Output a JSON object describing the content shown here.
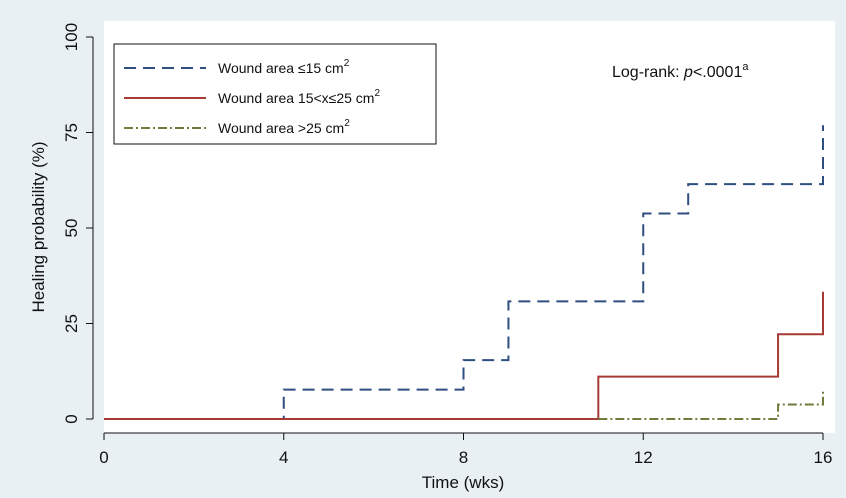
{
  "chart_data": {
    "type": "line",
    "xlabel": "Time (wks)",
    "ylabel": "Healing probability (%)",
    "xlim": [
      0,
      16
    ],
    "ylim": [
      0,
      100
    ],
    "xticks": [
      0,
      4,
      8,
      12,
      16
    ],
    "yticks": [
      0,
      25,
      50,
      75,
      100
    ],
    "grid": false,
    "legend_position": "top-left",
    "annotation": {
      "prefix": "Log-rank: ",
      "italic": "p",
      "rest": "<.0001",
      "sup": "a"
    },
    "series": [
      {
        "name": "Wound area ≤15 cm",
        "sup": "2",
        "color": "#2f4f80",
        "dash": "dashed",
        "x": [
          0,
          4,
          8,
          9,
          12,
          13,
          16
        ],
        "y": [
          0,
          7.7,
          15.4,
          30.8,
          53.8,
          61.5,
          76.9
        ]
      },
      {
        "name": "Wound area 15<x≤25 cm",
        "sup": "2",
        "color": "#a83a35",
        "dash": "solid",
        "x": [
          0,
          11,
          15,
          16
        ],
        "y": [
          0,
          11.1,
          22.2,
          33.3
        ]
      },
      {
        "name": "Wound area >25 cm",
        "sup": "2",
        "color": "#6f7d3c",
        "dash": "dashdot",
        "x": [
          11,
          15,
          16
        ],
        "y": [
          0,
          3.8,
          7.7
        ]
      }
    ]
  }
}
